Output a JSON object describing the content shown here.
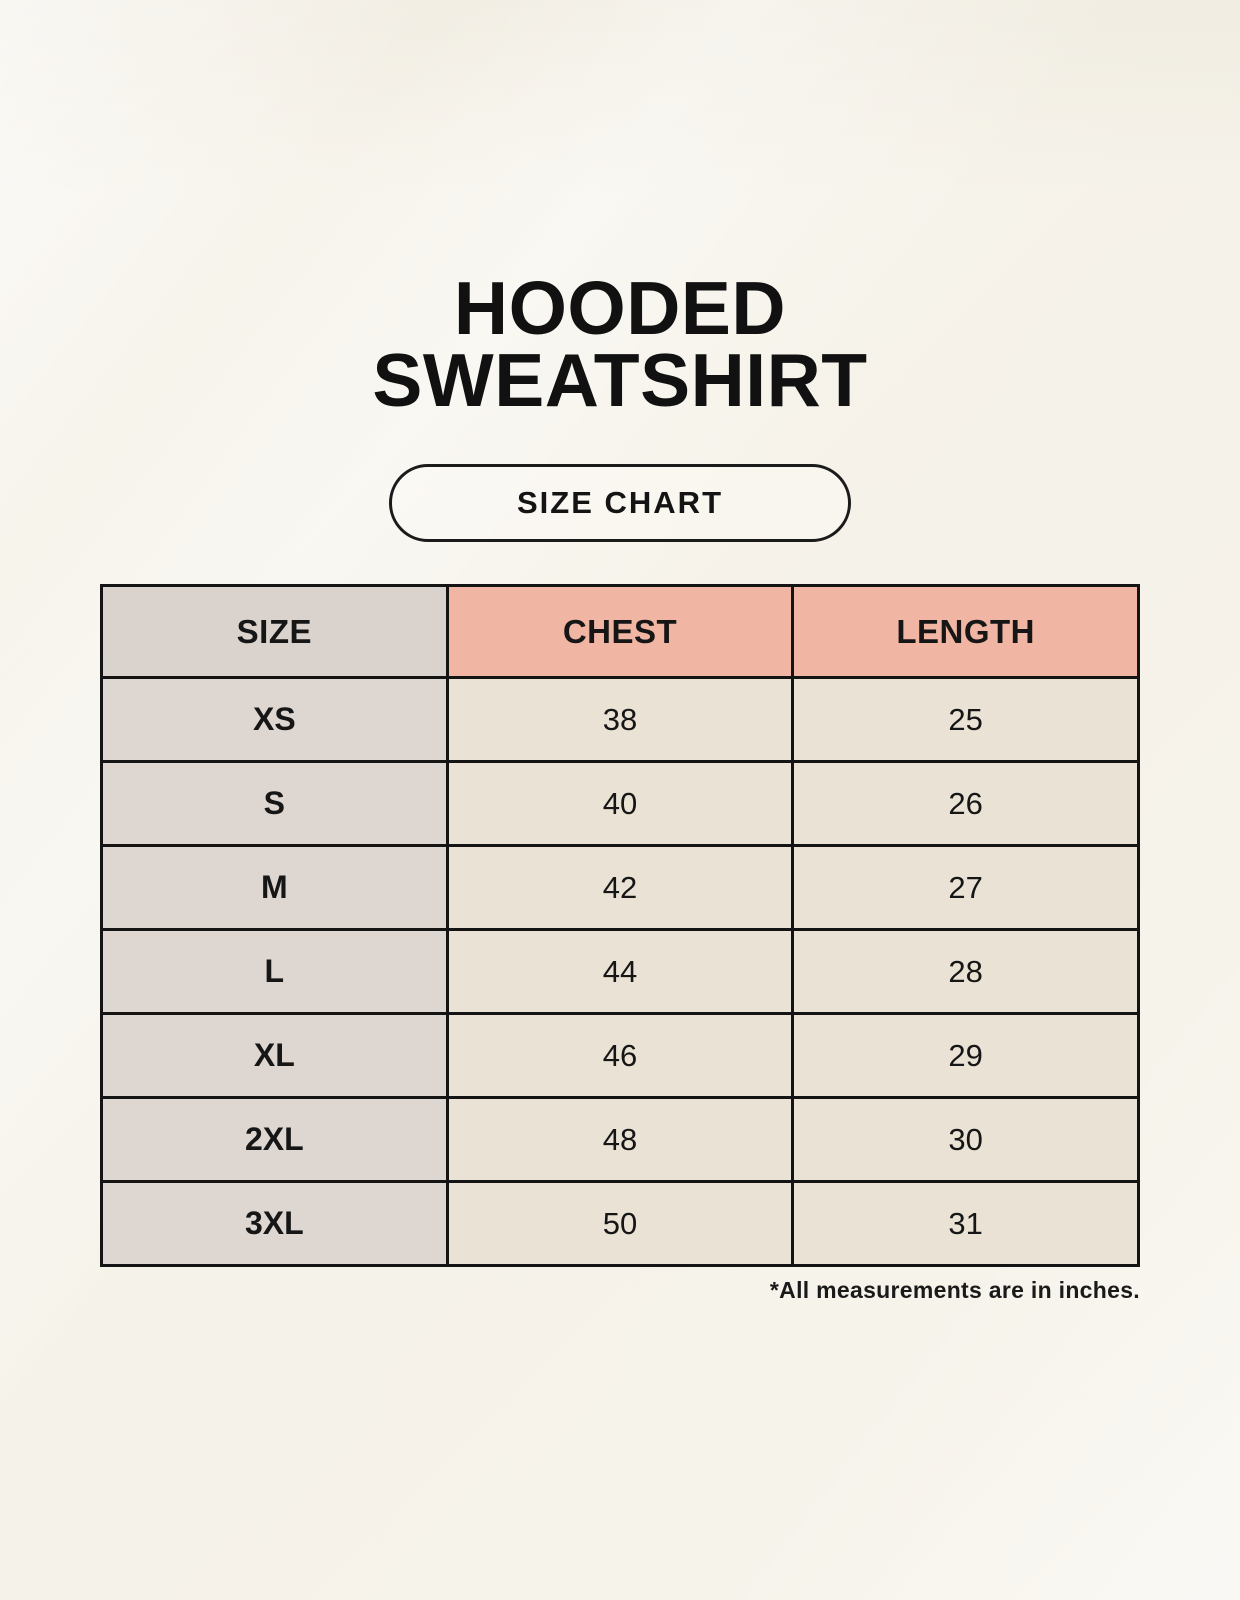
{
  "header": {
    "title_line1": "HOODED",
    "title_line2": "SWEATSHIRT",
    "badge_label": "SIZE CHART"
  },
  "footnote": "*All measurements are in inches.",
  "colors": {
    "page_background": "#f6f3ea",
    "header_pink": "#f1b5a3",
    "size_column_gray": "#ddd6d1",
    "value_cell_cream": "#eae3d5",
    "border_black": "#141414",
    "text_black": "#111111"
  },
  "chart_data": {
    "type": "table",
    "title": "HOODED SWEATSHIRT SIZE CHART",
    "columns": [
      "SIZE",
      "CHEST",
      "LENGTH"
    ],
    "rows": [
      [
        "XS",
        38,
        25
      ],
      [
        "S",
        40,
        26
      ],
      [
        "M",
        42,
        27
      ],
      [
        "L",
        44,
        28
      ],
      [
        "XL",
        46,
        29
      ],
      [
        "2XL",
        48,
        30
      ],
      [
        "3XL",
        50,
        31
      ]
    ],
    "units": "inches"
  },
  "table": {
    "headers": [
      "SIZE",
      "CHEST",
      "LENGTH"
    ],
    "rows": [
      {
        "size": "XS",
        "chest": "38",
        "length": "25"
      },
      {
        "size": "S",
        "chest": "40",
        "length": "26"
      },
      {
        "size": "M",
        "chest": "42",
        "length": "27"
      },
      {
        "size": "L",
        "chest": "44",
        "length": "28"
      },
      {
        "size": "XL",
        "chest": "46",
        "length": "29"
      },
      {
        "size": "2XL",
        "chest": "48",
        "length": "30"
      },
      {
        "size": "3XL",
        "chest": "50",
        "length": "31"
      }
    ]
  }
}
